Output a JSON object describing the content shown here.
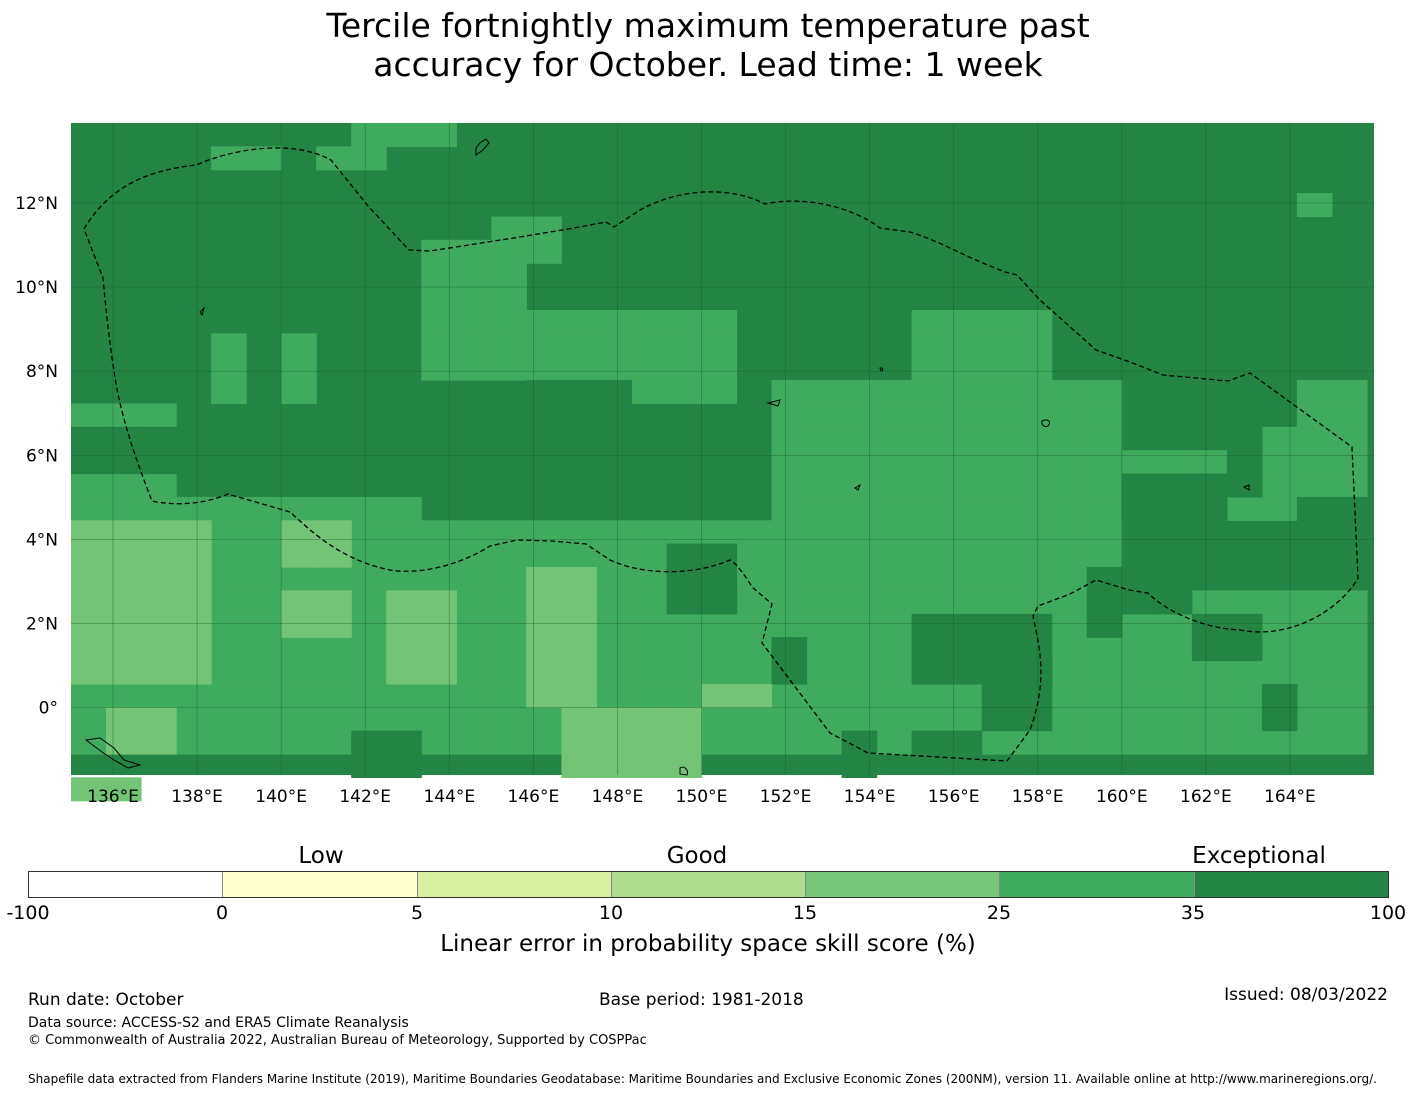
{
  "title": {
    "line1": "Tercile fortnightly maximum temperature past",
    "line2": "accuracy for October. Lead time: 1 week"
  },
  "map": {
    "lon_labels": [
      "136°E",
      "138°E",
      "140°E",
      "142°E",
      "144°E",
      "146°E",
      "148°E",
      "150°E",
      "152°E",
      "154°E",
      "156°E",
      "158°E",
      "160°E",
      "162°E",
      "164°E"
    ],
    "lat_labels": [
      "12°N",
      "10°N",
      "8°N",
      "6°N",
      "4°N",
      "2°N",
      "0°"
    ],
    "colors": {
      "c1": "#74c476",
      "c2": "#41ab5d",
      "c3": "#238443",
      "grid": "#1a5e2e"
    }
  },
  "colorbar": {
    "categories": [
      "Low",
      "Good",
      "Exceptional"
    ],
    "ticks": [
      "-100",
      "0",
      "5",
      "10",
      "15",
      "25",
      "35",
      "100"
    ],
    "colors": [
      "#ffffff",
      "#ffffcc",
      "#d9f0a3",
      "#addd8e",
      "#78c679",
      "#41ab5d",
      "#238443"
    ],
    "title": "Linear error in probability space skill score (%)"
  },
  "footer": {
    "run_date": "Run date: October",
    "base_period": "Base period: 1981-2018",
    "issued": "Issued: 08/03/2022",
    "data_source": "Data source: ACCESS-S2 and ERA5 Climate Reanalysis",
    "copyright": "© Commonwealth of Australia 2022, Australian Bureau of Meteorology, Supported by COSPPac",
    "shapefile": "Shapefile data extracted from Flanders Marine Institute (2019), Maritime Boundaries Geodatabase: Maritime Boundaries and Exclusive Economic Zones (200NM), version 11. Available online at http://www.marineregions.org/."
  }
}
